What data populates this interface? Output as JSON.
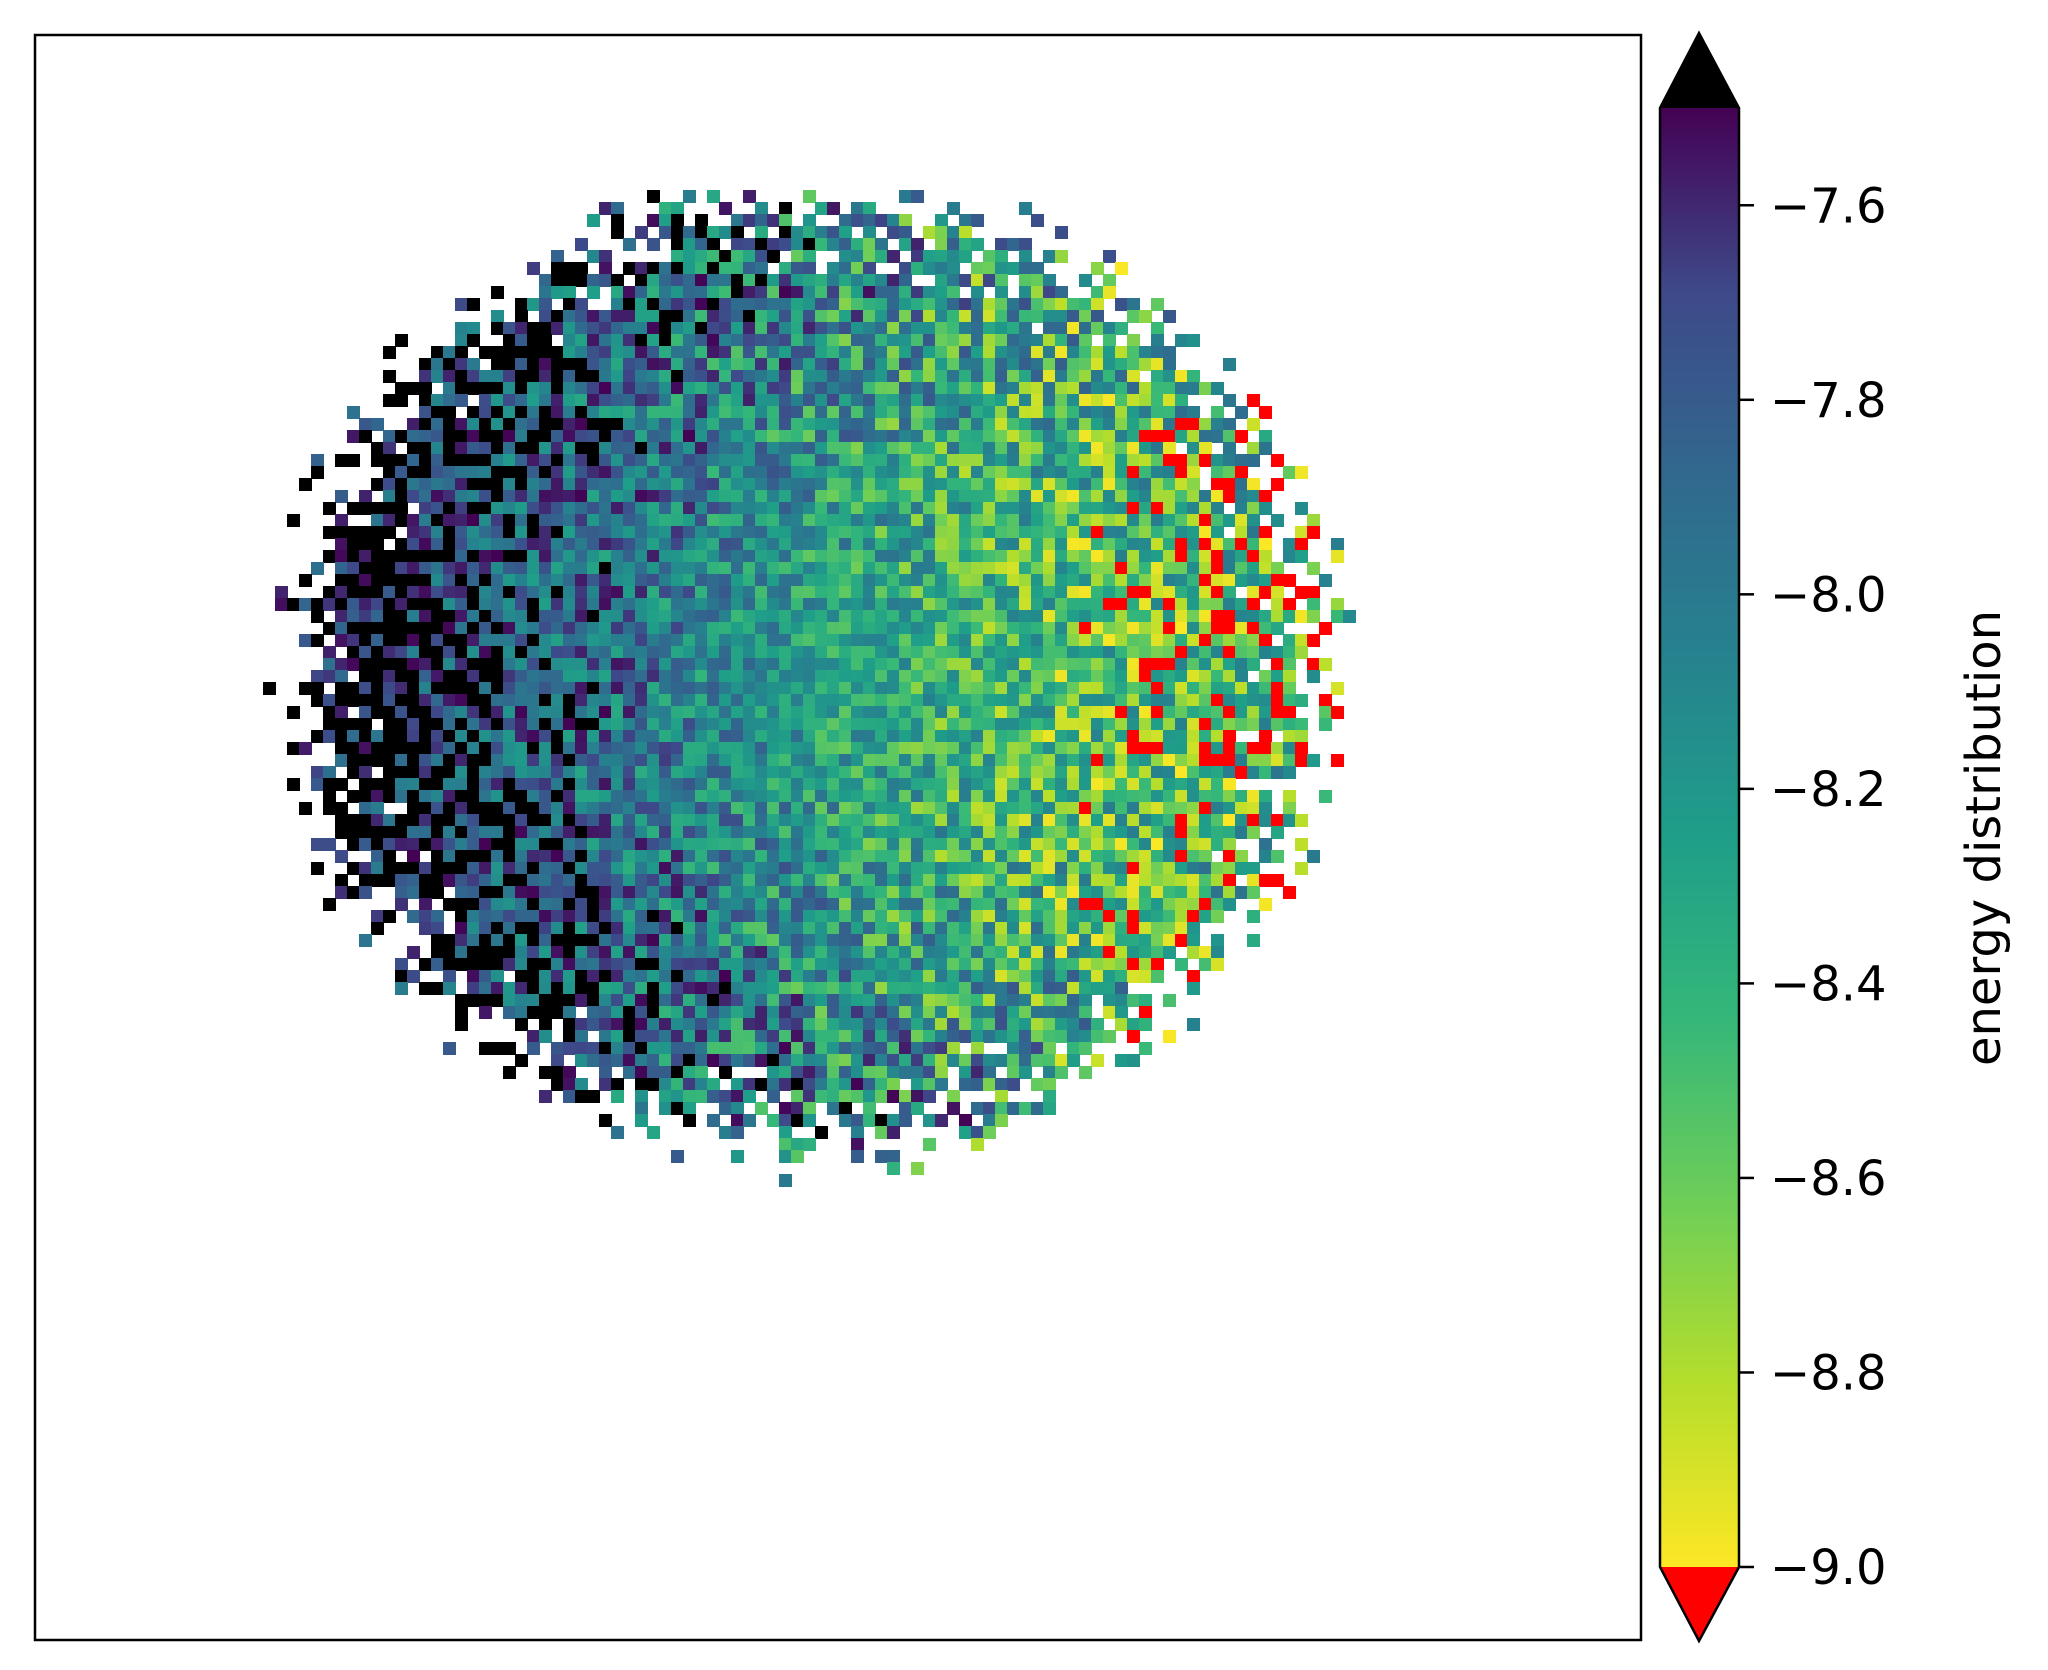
{
  "chart_data": {
    "type": "heatmap",
    "title": "",
    "xlabel": "",
    "ylabel": "",
    "colorbar": {
      "label": "energy distribution",
      "colormap": "viridis",
      "vmin": -9.0,
      "vmax": -7.5,
      "ticks": [
        -7.6,
        -7.8,
        -8.0,
        -8.2,
        -8.4,
        -8.6,
        -8.8,
        -9.0
      ],
      "tick_labels": [
        "−7.6",
        "−7.8",
        "−8.0",
        "−8.2",
        "−8.4",
        "−8.6",
        "−8.8",
        "−9.0"
      ],
      "over_color": "#000000",
      "under_color": "#ff0000",
      "extend": "both"
    },
    "axes_ticks_visible": false,
    "grid": false,
    "description_of_field": "Roughly circular blob of per-pixel energy values; low values (below -9.0, shown red) concentrated on the right, high values (above -7.5, shown black) on the left edge, mid values (green/teal) in the center; surrounding area masked (white)."
  }
}
